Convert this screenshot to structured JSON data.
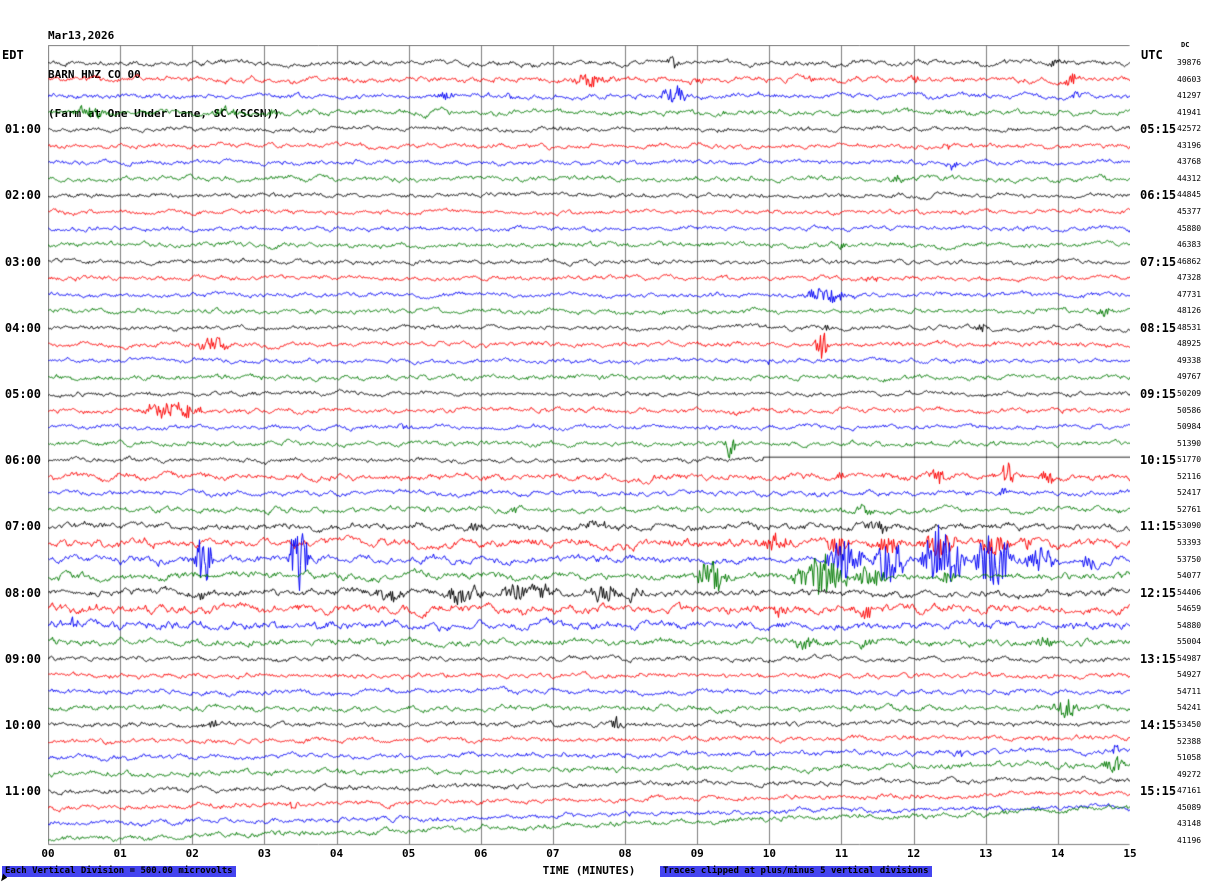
{
  "header": {
    "date": "Mar13,2026",
    "station": "BARN HNZ CO 00",
    "location": "(Farm at One Under Lane, SC (SCSN))"
  },
  "axes": {
    "left_tz": "EDT",
    "right_tz": "UTC",
    "dc_label": "DC",
    "xlabel": "TIME (MINUTES)",
    "x_ticks": [
      "00",
      "01",
      "02",
      "03",
      "04",
      "05",
      "06",
      "07",
      "08",
      "09",
      "10",
      "11",
      "12",
      "13",
      "14",
      "15"
    ]
  },
  "footer": {
    "left": "Each Vertical Division =  500.00 microvolts",
    "right": "Traces clipped at plus/minus 5 vertical divisions"
  },
  "palette": {
    "black": "#000000",
    "red": "#fb0000",
    "blue": "#0000f5",
    "green": "#007a00",
    "grid": "#7d7d7d",
    "note_bg": "#4444f0"
  },
  "chart_data": {
    "type": "line",
    "title": "BARN HNZ CO 00 (Farm at One Under Lane, SC (SCSN)) Mar13,2026 helicorder",
    "xlabel": "TIME (MINUTES)",
    "xlim": [
      0,
      15
    ],
    "minutes_per_row": 15,
    "row_count": 48,
    "left_hour_labels": [
      "01:00",
      "02:00",
      "03:00",
      "04:00",
      "05:00",
      "06:00",
      "07:00",
      "08:00",
      "09:00",
      "10:00",
      "11:00"
    ],
    "right_hour_labels": [
      "05:15",
      "06:15",
      "07:15",
      "08:15",
      "09:15",
      "10:15",
      "11:15",
      "12:15",
      "13:15",
      "14:15",
      "15:15"
    ],
    "traces": [
      {
        "color": "black",
        "dc": 39876,
        "noise": 1.0,
        "events": [
          [
            8.55,
            0.25,
            6
          ],
          [
            13.85,
            0.2,
            3
          ]
        ]
      },
      {
        "color": "red",
        "dc": 40603,
        "noise": 1.1,
        "events": [
          [
            7.15,
            0.7,
            6
          ],
          [
            8.85,
            0.25,
            4
          ],
          [
            10.5,
            0.2,
            3
          ],
          [
            11.85,
            0.25,
            4
          ],
          [
            14.05,
            0.3,
            5
          ]
        ]
      },
      {
        "color": "blue",
        "dc": 41297,
        "noise": 1.0,
        "events": [
          [
            5.35,
            0.3,
            5
          ],
          [
            6.3,
            0.2,
            3
          ],
          [
            8.45,
            0.45,
            9
          ],
          [
            14.15,
            0.2,
            4
          ]
        ]
      },
      {
        "color": "green",
        "dc": 41941,
        "noise": 1.1,
        "events": [
          [
            0.25,
            0.6,
            7
          ],
          [
            2.2,
            0.5,
            5
          ],
          [
            2.95,
            0.3,
            3
          ]
        ]
      },
      {
        "color": "black",
        "dc": 42572,
        "noise": 0.9,
        "left_label": "01:00",
        "right_label": "05:15",
        "events": [
          [
            13.3,
            0.2,
            3
          ]
        ]
      },
      {
        "color": "red",
        "dc": 43196,
        "noise": 0.9,
        "events": [
          [
            12.35,
            0.2,
            4
          ]
        ]
      },
      {
        "color": "blue",
        "dc": 43768,
        "noise": 0.9,
        "events": [
          [
            12.4,
            0.25,
            5
          ]
        ]
      },
      {
        "color": "green",
        "dc": 44312,
        "noise": 1.0,
        "events": [
          [
            11.6,
            0.3,
            4
          ]
        ]
      },
      {
        "color": "black",
        "dc": 44845,
        "noise": 0.9,
        "left_label": "02:00",
        "right_label": "06:15",
        "events": []
      },
      {
        "color": "red",
        "dc": 45377,
        "noise": 0.9,
        "events": []
      },
      {
        "color": "blue",
        "dc": 45880,
        "noise": 0.9,
        "events": []
      },
      {
        "color": "green",
        "dc": 46383,
        "noise": 1.0,
        "events": [
          [
            10.9,
            0.2,
            3
          ]
        ]
      },
      {
        "color": "black",
        "dc": 46862,
        "noise": 0.9,
        "left_label": "03:00",
        "right_label": "07:15",
        "events": []
      },
      {
        "color": "red",
        "dc": 47328,
        "noise": 0.9,
        "events": [
          [
            11.3,
            0.25,
            3
          ]
        ]
      },
      {
        "color": "blue",
        "dc": 47731,
        "noise": 0.9,
        "events": [
          [
            10.35,
            0.9,
            6
          ]
        ]
      },
      {
        "color": "green",
        "dc": 48126,
        "noise": 1.0,
        "events": [
          [
            14.5,
            0.3,
            4
          ]
        ]
      },
      {
        "color": "black",
        "dc": 48531,
        "noise": 0.9,
        "left_label": "04:00",
        "right_label": "08:15",
        "events": [
          [
            10.7,
            0.2,
            4
          ],
          [
            12.85,
            0.2,
            4
          ]
        ]
      },
      {
        "color": "red",
        "dc": 48925,
        "noise": 1.0,
        "events": [
          [
            1.95,
            0.6,
            7
          ],
          [
            10.6,
            0.25,
            15
          ]
        ]
      },
      {
        "color": "blue",
        "dc": 49338,
        "noise": 0.9,
        "events": [
          [
            9.9,
            0.15,
            3
          ]
        ]
      },
      {
        "color": "green",
        "dc": 49767,
        "noise": 1.0,
        "events": []
      },
      {
        "color": "black",
        "dc": 50209,
        "noise": 0.9,
        "left_label": "05:00",
        "right_label": "09:15",
        "events": []
      },
      {
        "color": "red",
        "dc": 50586,
        "noise": 1.0,
        "events": [
          [
            1.2,
            1.0,
            8
          ],
          [
            9.3,
            0.3,
            4
          ]
        ]
      },
      {
        "color": "blue",
        "dc": 50984,
        "noise": 0.9,
        "events": [
          [
            4.8,
            0.2,
            4
          ]
        ]
      },
      {
        "color": "green",
        "dc": 51390,
        "noise": 1.0,
        "events": [
          [
            9.35,
            0.18,
            16
          ]
        ]
      },
      {
        "color": "black",
        "dc": 51770,
        "noise": 0.9,
        "left_label": "06:00",
        "right_label": "10:15",
        "flat_from": 9.9,
        "events": []
      },
      {
        "color": "red",
        "dc": 52116,
        "noise": 1.3,
        "events": [
          [
            10.9,
            0.2,
            6
          ],
          [
            12.2,
            0.25,
            8
          ],
          [
            13.2,
            0.2,
            13
          ],
          [
            13.75,
            0.2,
            6
          ]
        ]
      },
      {
        "color": "blue",
        "dc": 52417,
        "noise": 1.0,
        "events": [
          [
            13.15,
            0.2,
            5
          ]
        ]
      },
      {
        "color": "green",
        "dc": 52761,
        "noise": 1.1,
        "events": [
          [
            6.4,
            0.2,
            5
          ],
          [
            11.15,
            0.3,
            4
          ]
        ]
      },
      {
        "color": "black",
        "dc": 53090,
        "noise": 1.3,
        "left_label": "07:00",
        "right_label": "11:15",
        "events": [
          [
            5.8,
            0.3,
            4
          ],
          [
            7.4,
            0.4,
            5
          ],
          [
            11.3,
            0.4,
            6
          ]
        ]
      },
      {
        "color": "red",
        "dc": 53393,
        "noise": 1.6,
        "events": [
          [
            9.85,
            0.5,
            8
          ],
          [
            10.75,
            0.4,
            10
          ],
          [
            11.4,
            0.5,
            9
          ],
          [
            12.05,
            0.6,
            11
          ],
          [
            12.85,
            0.5,
            9
          ],
          [
            13.4,
            0.3,
            6
          ]
        ]
      },
      {
        "color": "blue",
        "dc": 53750,
        "noise": 1.4,
        "events": [
          [
            2.0,
            0.3,
            24
          ],
          [
            3.3,
            0.35,
            32
          ],
          [
            10.75,
            0.6,
            22
          ],
          [
            11.4,
            0.5,
            26
          ],
          [
            12.05,
            0.7,
            36
          ],
          [
            12.8,
            0.6,
            30
          ],
          [
            13.5,
            0.5,
            16
          ],
          [
            14.3,
            0.3,
            8
          ]
        ]
      },
      {
        "color": "green",
        "dc": 54077,
        "noise": 1.4,
        "events": [
          [
            8.95,
            0.5,
            15
          ],
          [
            10.25,
            0.9,
            19
          ],
          [
            11.15,
            0.5,
            12
          ],
          [
            12.3,
            0.3,
            6
          ]
        ]
      },
      {
        "color": "black",
        "dc": 54406,
        "noise": 1.4,
        "left_label": "08:00",
        "right_label": "12:15",
        "events": [
          [
            2.05,
            0.15,
            6
          ],
          [
            4.5,
            0.5,
            7
          ],
          [
            5.4,
            0.7,
            8
          ],
          [
            6.2,
            0.9,
            9
          ],
          [
            7.4,
            0.6,
            8
          ],
          [
            8.0,
            0.3,
            5
          ]
        ]
      },
      {
        "color": "red",
        "dc": 54659,
        "noise": 1.7,
        "events": [
          [
            10.0,
            0.3,
            5
          ],
          [
            11.25,
            0.2,
            8
          ]
        ]
      },
      {
        "color": "blue",
        "dc": 54880,
        "noise": 1.5,
        "events": [
          [
            0.25,
            0.2,
            6
          ]
        ]
      },
      {
        "color": "green",
        "dc": 55004,
        "noise": 1.3,
        "events": [
          [
            10.3,
            0.4,
            8
          ],
          [
            11.2,
            0.3,
            5
          ],
          [
            13.65,
            0.3,
            6
          ]
        ]
      },
      {
        "color": "black",
        "dc": 54987,
        "noise": 1.0,
        "left_label": "09:00",
        "right_label": "13:15",
        "events": []
      },
      {
        "color": "red",
        "dc": 54927,
        "noise": 1.0,
        "events": []
      },
      {
        "color": "blue",
        "dc": 54711,
        "noise": 1.0,
        "events": []
      },
      {
        "color": "green",
        "dc": 54241,
        "noise": 1.1,
        "events": [
          [
            13.85,
            0.5,
            8
          ]
        ]
      },
      {
        "color": "black",
        "dc": 53450,
        "noise": 1.0,
        "drift": 2,
        "left_label": "10:00",
        "right_label": "14:15",
        "events": [
          [
            2.2,
            0.2,
            4
          ],
          [
            7.75,
            0.25,
            6
          ]
        ]
      },
      {
        "color": "red",
        "dc": 52388,
        "noise": 1.0,
        "drift": 4,
        "events": []
      },
      {
        "color": "blue",
        "dc": 51058,
        "noise": 1.0,
        "drift": 7,
        "events": [
          [
            12.5,
            0.2,
            4
          ],
          [
            14.7,
            0.2,
            5
          ]
        ]
      },
      {
        "color": "green",
        "dc": 49272,
        "noise": 1.1,
        "drift": 10,
        "events": [
          [
            14.55,
            0.4,
            9
          ]
        ]
      },
      {
        "color": "black",
        "dc": 47161,
        "noise": 1.0,
        "drift": 12,
        "left_label": "11:00",
        "right_label": "15:15",
        "events": []
      },
      {
        "color": "red",
        "dc": 45089,
        "noise": 1.0,
        "drift": 15,
        "events": [
          [
            3.3,
            0.2,
            4
          ]
        ]
      },
      {
        "color": "blue",
        "dc": 43148,
        "noise": 1.0,
        "drift": 18,
        "events": []
      },
      {
        "color": "green",
        "dc": 41196,
        "noise": 1.1,
        "drift": 32,
        "events": []
      }
    ]
  }
}
